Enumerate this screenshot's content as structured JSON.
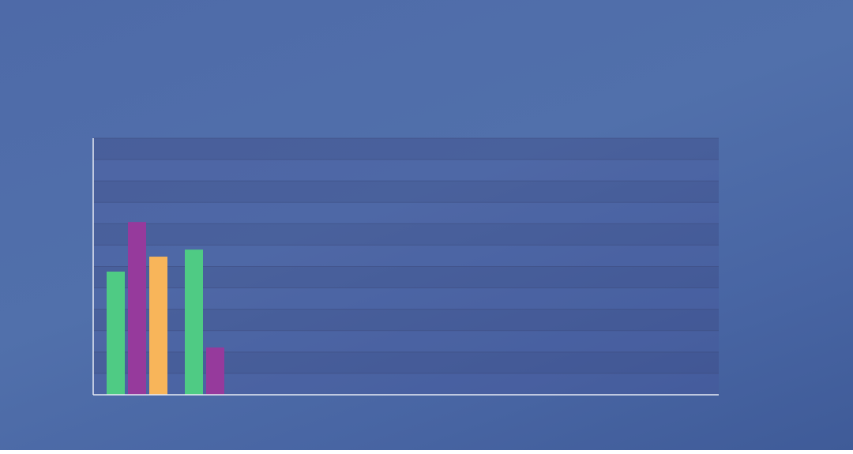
{
  "chart_data": {
    "type": "bar",
    "categories": [
      null,
      null,
      null,
      null,
      null,
      null,
      null,
      null
    ],
    "series": [
      {
        "color": "#4fcb84",
        "values": [
          5.76,
          6.79,
          null,
          null,
          null,
          null,
          null,
          null
        ]
      },
      {
        "color": "#963a9c",
        "values": [
          8.08,
          2.21,
          null,
          null,
          null,
          null,
          null,
          null
        ]
      },
      {
        "color": "#f8b55a",
        "values": [
          6.46,
          null,
          null,
          null,
          null,
          null,
          null,
          null
        ]
      }
    ],
    "ylim": [
      0,
      12
    ],
    "yticks": [
      0,
      1,
      2,
      3,
      4,
      5,
      6,
      7,
      8,
      9,
      10,
      11,
      12
    ],
    "grid": true
  }
}
